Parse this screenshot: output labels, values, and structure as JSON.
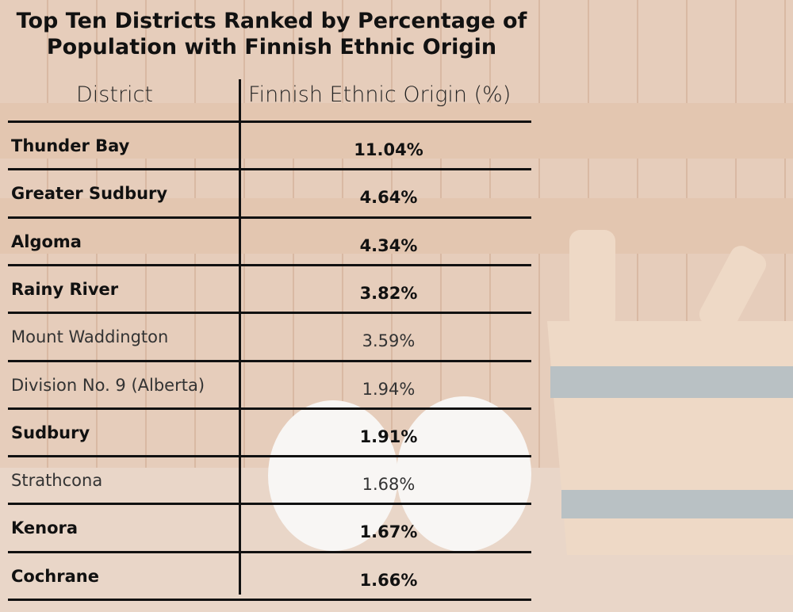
{
  "chart_data": {
    "type": "table",
    "title_lines": [
      "Top Ten Districts Ranked by Percentage of",
      "Population with Finnish Ethnic Origin"
    ],
    "columns": [
      "District",
      "Finnish Ethnic Origin (%)"
    ],
    "rows": [
      {
        "district": "Thunder Bay",
        "value": "11.04%",
        "bold": true
      },
      {
        "district": "Greater Sudbury",
        "value": "4.64%",
        "bold": true
      },
      {
        "district": "Algoma",
        "value": "4.34%",
        "bold": true
      },
      {
        "district": "Rainy River",
        "value": "3.82%",
        "bold": true
      },
      {
        "district": "Mount Waddington",
        "value": "3.59%",
        "bold": false
      },
      {
        "district": "Division No. 9 (Alberta)",
        "value": "1.94%",
        "bold": false
      },
      {
        "district": "Sudbury",
        "value": "1.91%",
        "bold": true
      },
      {
        "district": "Strathcona",
        "value": "1.68%",
        "bold": false
      },
      {
        "district": "Kenora",
        "value": "1.67%",
        "bold": true
      },
      {
        "district": "Cochrane",
        "value": "1.66%",
        "bold": true
      }
    ]
  },
  "background": {
    "wall_color": "#e6cdbb",
    "plank_line_color": "#d9b9a3",
    "bench_color": "#e3c6b0",
    "floor_color": "#e9d6c8",
    "bucket_wood_color": "#eed9c6",
    "bucket_band_color": "#b9c1c4",
    "towel_color": "#f8f6f4"
  }
}
